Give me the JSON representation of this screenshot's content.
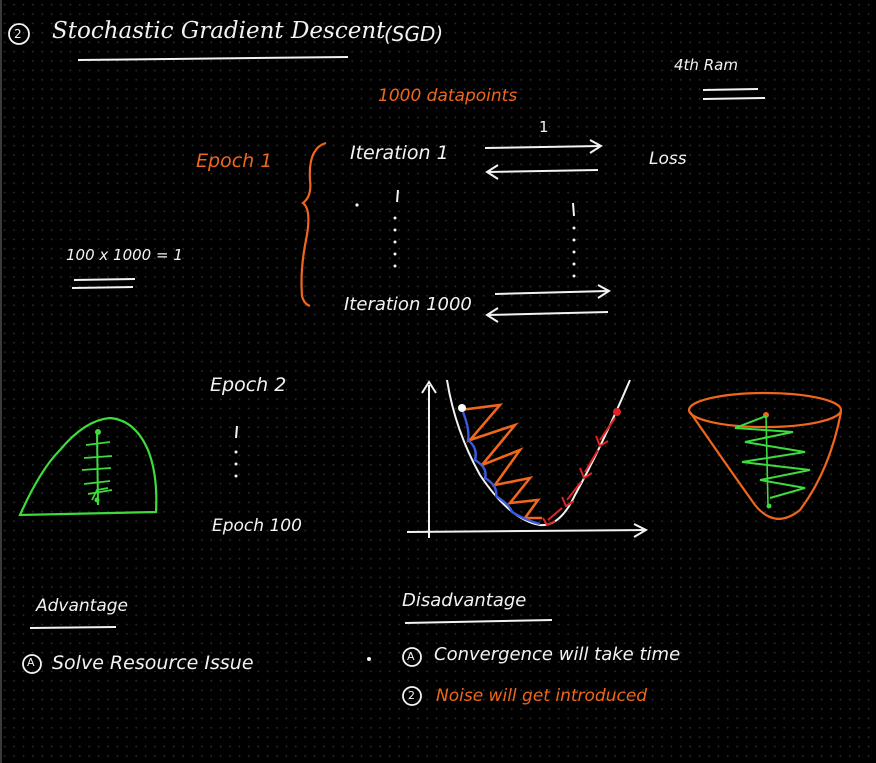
{
  "colors": {
    "background": "#000000",
    "ink_white": "#f2f2f2",
    "ink_orange": "#f0661c",
    "ink_green": "#3ddc3d",
    "ink_blue": "#3a5ae0",
    "ink_red": "#e02424"
  },
  "heading": {
    "number": "2",
    "title": "Stochastic Gradient Descent",
    "abbr": "(SGD)"
  },
  "ram_note": "4th Ram",
  "datapoints": "1000 datapoints",
  "epoch_block": {
    "epoch1": "Epoch 1",
    "iteration1": "Iteration 1",
    "iteration1000": "Iteration 1000",
    "arrow_label": "1",
    "loss": "Loss"
  },
  "equation": "100 x 1000 = 1",
  "epoch2": "Epoch 2",
  "epoch100": "Epoch 100",
  "advantage": {
    "title": "Advantage",
    "marker": "A",
    "item": "Solve Resource Issue"
  },
  "disadvantage": {
    "title": "Disadvantage",
    "item1_marker": "A",
    "item1": "Convergence will take time",
    "item2_marker": "2",
    "item2": "Noise will get introduced"
  }
}
